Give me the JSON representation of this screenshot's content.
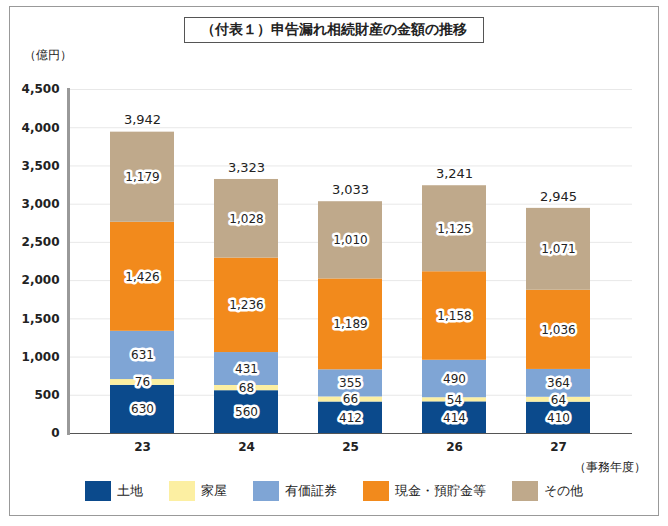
{
  "chart_data": {
    "type": "bar",
    "title": "（付表１）申告漏れ相続財産の金額の推移",
    "y_label": "（億円）",
    "x_label": "（事務年度）",
    "categories": [
      "23",
      "24",
      "25",
      "26",
      "27"
    ],
    "series": [
      {
        "name": "土地",
        "color": "#0b4a8c",
        "values": [
          630,
          560,
          412,
          414,
          410
        ]
      },
      {
        "name": "家屋",
        "color": "#fcefa2",
        "values": [
          76,
          68,
          66,
          54,
          64
        ]
      },
      {
        "name": "有価証券",
        "color": "#7fa5d5",
        "values": [
          631,
          431,
          355,
          490,
          364
        ]
      },
      {
        "name": "現金・預貯金等",
        "color": "#f28a1c",
        "values": [
          1426,
          1236,
          1189,
          1158,
          1036
        ],
        "value_labels": [
          "1,426",
          "1,236",
          "1,189",
          "1,158",
          "1,036"
        ]
      },
      {
        "name": "その他",
        "color": "#bfa98b",
        "values": [
          1179,
          1028,
          1010,
          1125,
          1071
        ],
        "value_labels": [
          "1,179",
          "1,028",
          "1,010",
          "1,125",
          "1,071"
        ]
      }
    ],
    "totals": [
      3942,
      3323,
      3033,
      3241,
      2945
    ],
    "total_labels": [
      "3,942",
      "3,323",
      "3,033",
      "3,241",
      "2,945"
    ],
    "ylim": [
      0,
      4500
    ],
    "yticks": [
      0,
      500,
      {
        "value": 1000,
        "label": "1,000"
      },
      {
        "value": 1500,
        "label": "1,500"
      },
      {
        "value": 2000,
        "label": "2,000"
      },
      {
        "value": 2500,
        "label": "2,500"
      },
      {
        "value": 3000,
        "label": "3,000"
      },
      {
        "value": 3500,
        "label": "3,500"
      },
      {
        "value": 4000,
        "label": "4,000"
      },
      {
        "value": 4500,
        "label": "4,500"
      }
    ],
    "stacked": true,
    "data_labels": true,
    "grid": true,
    "legend": "bottom"
  }
}
